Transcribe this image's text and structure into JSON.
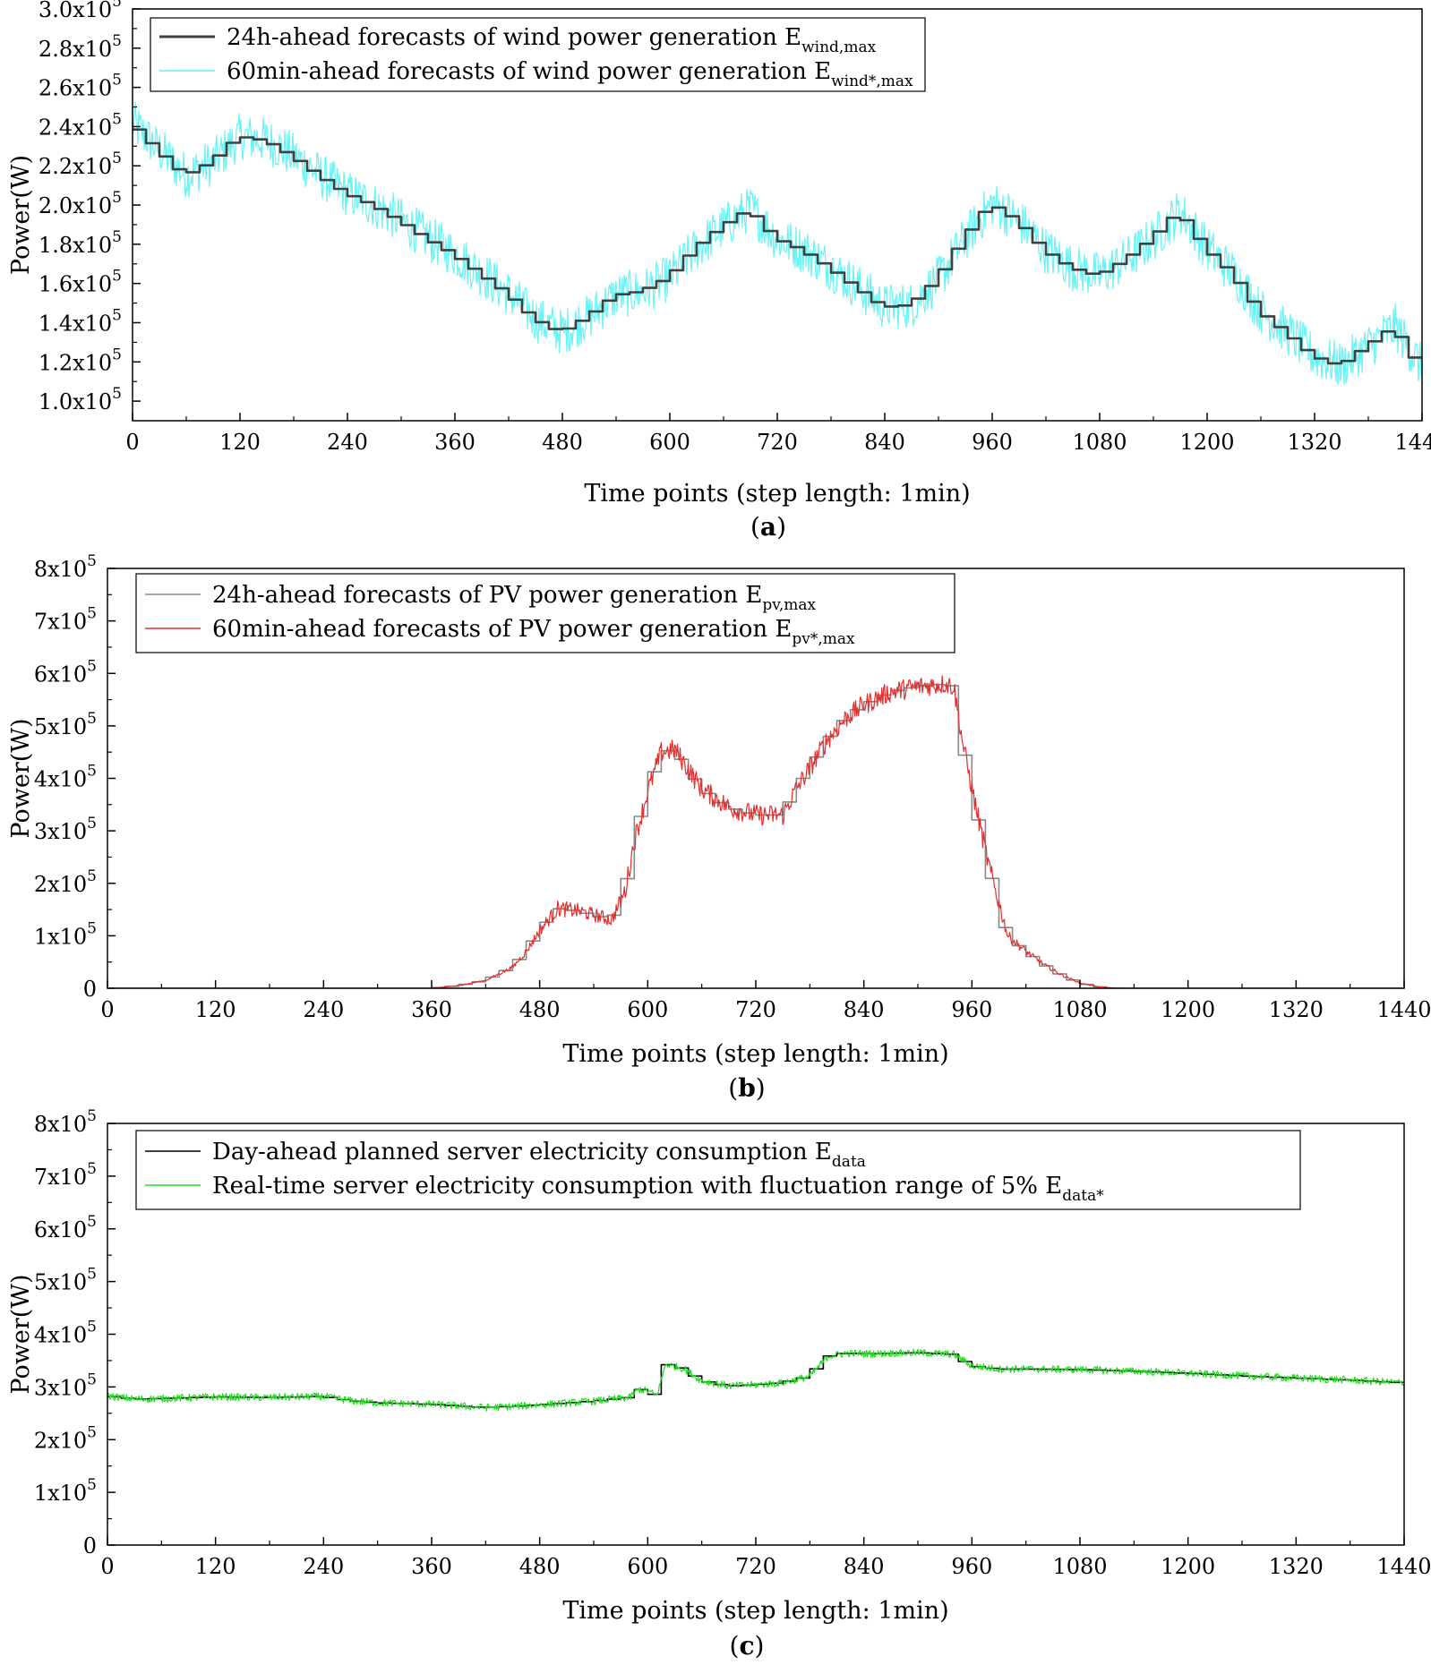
{
  "chart_data": [
    {
      "panel": "a",
      "panel_label_open": "(",
      "panel_label_letter": "a",
      "panel_label_close": ")",
      "type": "line",
      "title": "",
      "xlabel": "Time points (step length: 1min)",
      "ylabel": "Power(W)",
      "xlim": [
        0,
        1440
      ],
      "ylim": [
        90000,
        300000
      ],
      "x_ticks": [
        0,
        120,
        240,
        360,
        480,
        600,
        720,
        840,
        960,
        1080,
        1200,
        1320,
        1440
      ],
      "y_ticks": [
        {
          "mantissa": "1.0",
          "value": 100000
        },
        {
          "mantissa": "1.2",
          "value": 120000
        },
        {
          "mantissa": "1.4",
          "value": 140000
        },
        {
          "mantissa": "1.6",
          "value": 160000
        },
        {
          "mantissa": "1.8",
          "value": 180000
        },
        {
          "mantissa": "2.0",
          "value": 200000
        },
        {
          "mantissa": "2.2",
          "value": 220000
        },
        {
          "mantissa": "2.4",
          "value": 240000
        },
        {
          "mantissa": "2.6",
          "value": 260000
        },
        {
          "mantissa": "2.8",
          "value": 280000
        },
        {
          "mantissa": "3.0",
          "value": 300000
        }
      ],
      "tick_multiplier": "x10",
      "tick_exponent": "5",
      "legend_position": "top-left",
      "series": [
        {
          "name": "24h-ahead forecasts of wind power generation E",
          "name_sub": "wind,max",
          "color": "#404040",
          "style": "step-15min",
          "x": [
            0,
            30,
            60,
            90,
            120,
            150,
            180,
            210,
            240,
            270,
            300,
            330,
            360,
            390,
            420,
            450,
            480,
            510,
            540,
            570,
            600,
            630,
            660,
            690,
            720,
            750,
            780,
            810,
            840,
            870,
            900,
            930,
            960,
            990,
            1020,
            1050,
            1080,
            1110,
            1140,
            1170,
            1200,
            1230,
            1260,
            1290,
            1320,
            1350,
            1380,
            1410,
            1440
          ],
          "y": [
            242000,
            228000,
            215000,
            222000,
            235000,
            233000,
            225000,
            215000,
            206000,
            200000,
            192000,
            183000,
            175000,
            165000,
            155000,
            142000,
            135000,
            143000,
            154000,
            156000,
            163000,
            178000,
            189000,
            198000,
            183000,
            177000,
            168000,
            158000,
            148000,
            149000,
            162000,
            183000,
            201000,
            192000,
            177000,
            168000,
            164000,
            172000,
            183000,
            197000,
            178000,
            165000,
            146000,
            135000,
            123000,
            118000,
            128000,
            138000,
            117000
          ]
        },
        {
          "name": "60min-ahead forecasts of wind power generation E",
          "name_sub": "wind*,max",
          "color": "#66f4f4",
          "style": "noisy",
          "noise_range": 12000,
          "x": [
            0,
            30,
            60,
            90,
            120,
            150,
            180,
            210,
            240,
            270,
            300,
            330,
            360,
            390,
            420,
            450,
            480,
            510,
            540,
            570,
            600,
            630,
            660,
            690,
            720,
            750,
            780,
            810,
            840,
            870,
            900,
            930,
            960,
            990,
            1020,
            1050,
            1080,
            1110,
            1140,
            1170,
            1200,
            1230,
            1260,
            1290,
            1320,
            1350,
            1380,
            1410,
            1440
          ],
          "y": [
            242000,
            228000,
            215000,
            222000,
            235000,
            233000,
            225000,
            215000,
            206000,
            200000,
            192000,
            183000,
            175000,
            165000,
            155000,
            142000,
            135000,
            143000,
            154000,
            156000,
            163000,
            178000,
            189000,
            198000,
            183000,
            177000,
            168000,
            158000,
            148000,
            149000,
            162000,
            183000,
            201000,
            192000,
            177000,
            168000,
            164000,
            172000,
            183000,
            197000,
            178000,
            165000,
            146000,
            135000,
            123000,
            118000,
            128000,
            138000,
            117000
          ]
        }
      ]
    },
    {
      "panel": "b",
      "panel_label_open": "(",
      "panel_label_letter": "b",
      "panel_label_close": ")",
      "type": "line",
      "title": "",
      "xlabel": "Time points (step length: 1min)",
      "ylabel": "Power(W)",
      "xlim": [
        0,
        1440
      ],
      "ylim": [
        0,
        800000
      ],
      "x_ticks": [
        0,
        120,
        240,
        360,
        480,
        600,
        720,
        840,
        960,
        1080,
        1200,
        1320,
        1440
      ],
      "y_ticks": [
        {
          "mantissa": "0",
          "value": 0
        },
        {
          "mantissa": "1",
          "value": 100000
        },
        {
          "mantissa": "2",
          "value": 200000
        },
        {
          "mantissa": "3",
          "value": 300000
        },
        {
          "mantissa": "4",
          "value": 400000
        },
        {
          "mantissa": "5",
          "value": 500000
        },
        {
          "mantissa": "6",
          "value": 600000
        },
        {
          "mantissa": "7",
          "value": 700000
        },
        {
          "mantissa": "8",
          "value": 800000
        }
      ],
      "tick_multiplier": "x10",
      "tick_exponent": "5",
      "legend_position": "top-left",
      "series": [
        {
          "name": "24h-ahead forecasts of PV power generation E",
          "name_sub": "pv,max",
          "color": "#888888",
          "style": "step-15min",
          "x": [
            0,
            360,
            390,
            420,
            450,
            465,
            480,
            500,
            520,
            540,
            560,
            575,
            585,
            600,
            615,
            630,
            660,
            690,
            720,
            750,
            765,
            780,
            800,
            820,
            840,
            870,
            900,
            930,
            940,
            950,
            965,
            980,
            1000,
            1020,
            1040,
            1060,
            1080,
            1100,
            1120,
            1130,
            1440
          ],
          "y": [
            0,
            0,
            5000,
            15000,
            40000,
            70000,
            110000,
            152000,
            148000,
            140000,
            130000,
            185000,
            280000,
            375000,
            450000,
            455000,
            380000,
            345000,
            330000,
            330000,
            380000,
            420000,
            475000,
            515000,
            540000,
            565000,
            575000,
            580000,
            575000,
            465000,
            340000,
            225000,
            100000,
            70000,
            45000,
            25000,
            10000,
            3000,
            0,
            0,
            0
          ]
        },
        {
          "name": "60min-ahead forecasts of PV power generation E",
          "name_sub": "pv*,max",
          "color": "#e03030",
          "style": "noisy",
          "noise_range": 20000,
          "x": [
            0,
            360,
            390,
            420,
            450,
            465,
            480,
            500,
            520,
            540,
            560,
            575,
            585,
            600,
            615,
            630,
            660,
            690,
            720,
            750,
            765,
            780,
            800,
            820,
            840,
            870,
            900,
            930,
            940,
            950,
            965,
            980,
            1000,
            1020,
            1040,
            1060,
            1080,
            1100,
            1120,
            1130,
            1440
          ],
          "y": [
            0,
            0,
            5000,
            15000,
            40000,
            70000,
            110000,
            152000,
            148000,
            140000,
            130000,
            185000,
            280000,
            375000,
            450000,
            455000,
            380000,
            345000,
            330000,
            330000,
            380000,
            420000,
            475000,
            515000,
            540000,
            565000,
            575000,
            580000,
            575000,
            465000,
            340000,
            225000,
            100000,
            70000,
            45000,
            25000,
            10000,
            3000,
            0,
            0,
            0
          ]
        }
      ]
    },
    {
      "panel": "c",
      "panel_label_open": "(",
      "panel_label_letter": "c",
      "panel_label_close": ")",
      "type": "line",
      "title": "",
      "xlabel": "Time points (step length: 1min)",
      "ylabel": "Power(W)",
      "xlim": [
        0,
        1440
      ],
      "ylim": [
        0,
        800000
      ],
      "x_ticks": [
        0,
        120,
        240,
        360,
        480,
        600,
        720,
        840,
        960,
        1080,
        1200,
        1320,
        1440
      ],
      "y_ticks": [
        {
          "mantissa": "0",
          "value": 0
        },
        {
          "mantissa": "1",
          "value": 100000
        },
        {
          "mantissa": "2",
          "value": 200000
        },
        {
          "mantissa": "3",
          "value": 300000
        },
        {
          "mantissa": "4",
          "value": 400000
        },
        {
          "mantissa": "5",
          "value": 500000
        },
        {
          "mantissa": "6",
          "value": 600000
        },
        {
          "mantissa": "7",
          "value": 700000
        },
        {
          "mantissa": "8",
          "value": 800000
        }
      ],
      "tick_multiplier": "x10",
      "tick_exponent": "5",
      "legend_position": "top-left",
      "series": [
        {
          "name": "Day-ahead planned server electricity consumption E",
          "name_sub": "data",
          "color": "#000000",
          "style": "step-15min",
          "x": [
            0,
            30,
            60,
            120,
            180,
            240,
            270,
            300,
            360,
            420,
            450,
            480,
            540,
            580,
            590,
            600,
            610,
            620,
            640,
            660,
            690,
            720,
            750,
            780,
            800,
            820,
            850,
            900,
            940,
            960,
            990,
            1020,
            1080,
            1140,
            1200,
            1260,
            1320,
            1380,
            1440
          ],
          "y": [
            283000,
            277000,
            278000,
            281000,
            280000,
            282000,
            274000,
            270000,
            267000,
            261000,
            263000,
            266000,
            273000,
            280000,
            296000,
            292000,
            284000,
            343000,
            335000,
            312000,
            302000,
            304000,
            308000,
            320000,
            358000,
            364000,
            363000,
            365000,
            362000,
            340000,
            334000,
            334000,
            333000,
            330000,
            326000,
            321000,
            317000,
            313000,
            308000
          ]
        },
        {
          "name": "Real-time server electricity consumption with fluctuation range of 5% E",
          "name_sub": "data*",
          "color": "#22dd22",
          "style": "noisy",
          "noise_range": 7000,
          "x": [
            0,
            30,
            60,
            120,
            180,
            240,
            270,
            300,
            360,
            420,
            450,
            480,
            540,
            580,
            590,
            600,
            610,
            620,
            640,
            660,
            690,
            720,
            750,
            780,
            800,
            820,
            850,
            900,
            940,
            960,
            990,
            1020,
            1080,
            1140,
            1200,
            1260,
            1320,
            1380,
            1440
          ],
          "y": [
            283000,
            277000,
            278000,
            281000,
            280000,
            282000,
            274000,
            270000,
            267000,
            261000,
            263000,
            266000,
            273000,
            280000,
            296000,
            292000,
            284000,
            343000,
            335000,
            312000,
            302000,
            304000,
            308000,
            320000,
            358000,
            364000,
            363000,
            365000,
            362000,
            340000,
            334000,
            334000,
            333000,
            330000,
            326000,
            321000,
            317000,
            313000,
            308000
          ]
        }
      ]
    }
  ]
}
